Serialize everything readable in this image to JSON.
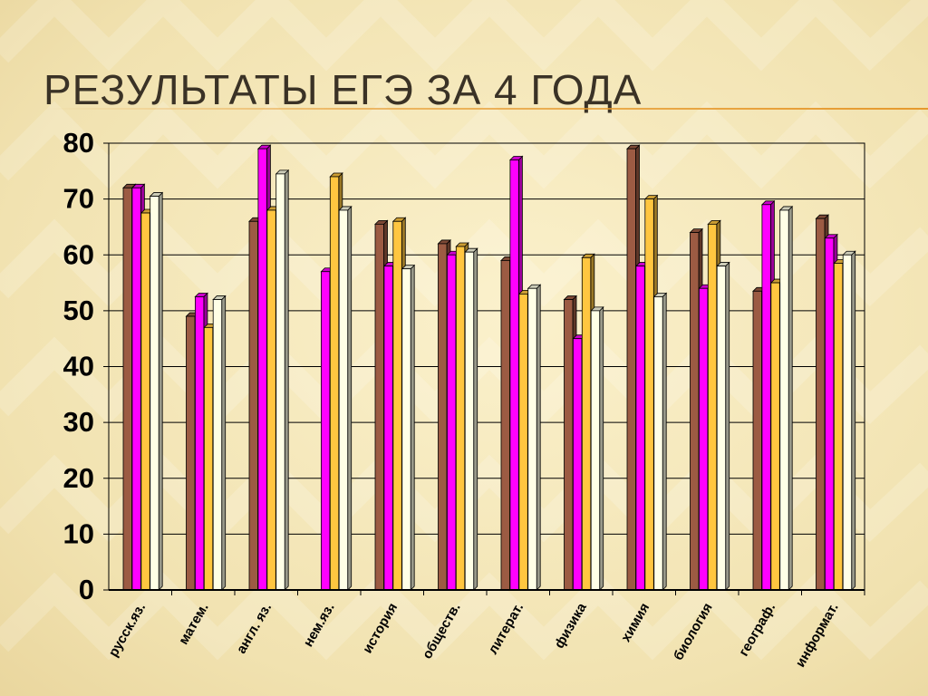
{
  "slide": {
    "title": "Результаты ЕГЭ за 4 года"
  },
  "colors": {
    "background": "#f3e6b8",
    "accent_rule": "#e69a2e",
    "series": [
      "#9c5b43",
      "#ff00ff",
      "#ffc640",
      "#ffffe6"
    ]
  },
  "chart_data": {
    "type": "bar",
    "title": "",
    "xlabel": "",
    "ylabel": "",
    "ylim": [
      0,
      80
    ],
    "yticks": [
      0,
      10,
      20,
      30,
      40,
      50,
      60,
      70,
      80
    ],
    "grid": true,
    "legend": "none",
    "categories": [
      "русск.яз.",
      "матем.",
      "англ. яз.",
      "нем.яз.",
      "история",
      "обществ.",
      "литерат.",
      "физика",
      "химия",
      "биология",
      "географ.",
      "информат."
    ],
    "series": [
      {
        "values": [
          72,
          49,
          66,
          0,
          65.5,
          62,
          59,
          52,
          79,
          64,
          53.5,
          66.5
        ]
      },
      {
        "values": [
          72,
          52.5,
          79,
          57,
          58,
          60,
          77,
          45,
          58,
          54,
          69,
          63
        ]
      },
      {
        "values": [
          67.5,
          47,
          68,
          74,
          66,
          61.5,
          53,
          59.5,
          70,
          65.5,
          55,
          58.5
        ]
      },
      {
        "values": [
          70.5,
          52,
          74.5,
          68,
          57.5,
          60.5,
          54,
          50,
          52.5,
          58,
          68,
          60
        ]
      }
    ]
  }
}
